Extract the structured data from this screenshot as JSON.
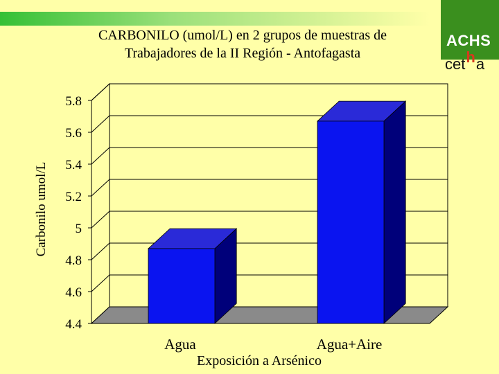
{
  "logo": {
    "achs": "ACHS",
    "cetha_prefix": "cet",
    "cetha_h": "h",
    "cetha_suffix": "a"
  },
  "chart_data": {
    "type": "bar",
    "title_line1": "CARBONILO (umol/L) en 2 grupos de muestras de",
    "title_line2": "Trabajadores de la II Región - Antofagasta",
    "xlabel": "Exposición a Arsénico",
    "ylabel": "Carbonilo umol/L",
    "categories": [
      "Agua",
      "Agua+Aire"
    ],
    "values": [
      4.87,
      5.67
    ],
    "ylim": [
      4.4,
      5.8
    ],
    "yticks": [
      "5.8",
      "5.6",
      "5.4",
      "5.2",
      "5",
      "4.8",
      "4.6",
      "4.4"
    ],
    "grid": true,
    "style": "3d",
    "colors": {
      "bar_front": "#0a14f0",
      "bar_side": "#00007a",
      "bar_top": "#2a2ad8",
      "wall": "#ffffa8",
      "floor": "#8a8a8a",
      "grid": "#000000"
    }
  }
}
